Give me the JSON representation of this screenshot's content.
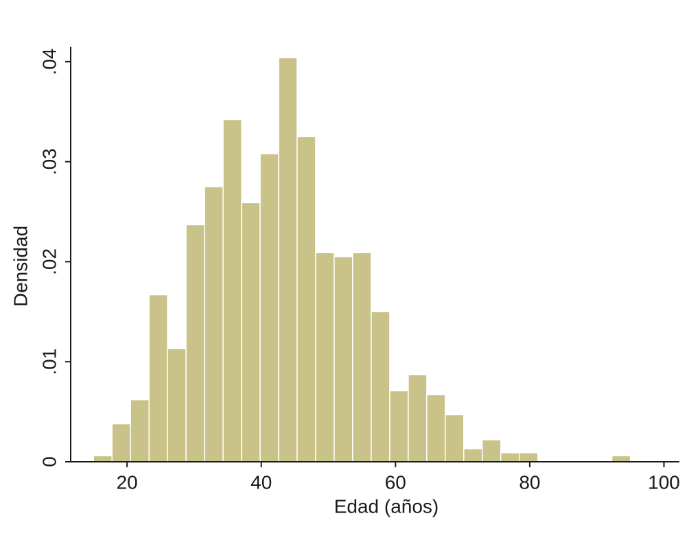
{
  "chart_data": {
    "type": "histogram",
    "x_label": "Edad (años)",
    "y_label": "Densidad",
    "bins": [
      15,
      17.76,
      20.52,
      23.28,
      26.03,
      28.79,
      31.55,
      34.31,
      37.07,
      39.83,
      42.59,
      45.34,
      48.1,
      50.86,
      53.62,
      56.38,
      59.14,
      61.9,
      64.66,
      67.41,
      70.17,
      72.93,
      75.69,
      78.45,
      81.21,
      83.97,
      86.72,
      89.48,
      92.24,
      95
    ],
    "values": [
      0.0006,
      0.0038,
      0.0062,
      0.0167,
      0.0113,
      0.0237,
      0.0275,
      0.0342,
      0.0259,
      0.0308,
      0.0404,
      0.0325,
      0.0209,
      0.0205,
      0.0209,
      0.015,
      0.0071,
      0.0087,
      0.0067,
      0.0047,
      0.0013,
      0.0022,
      0.0009,
      0.0009,
      0,
      0,
      0,
      0,
      0.0006
    ],
    "color": "#c9c289",
    "xlim": [
      11.6,
      102.3
    ],
    "xticks": [
      20,
      40,
      60,
      80,
      100
    ],
    "ylim": [
      0,
      0.0415
    ],
    "yticks": [
      0,
      {
        "value": 0.01,
        "label": ".01"
      },
      {
        "value": 0.02,
        "label": ".02"
      },
      {
        "value": 0.03,
        "label": ".03"
      },
      {
        "value": 0.04,
        "label": ".04"
      }
    ],
    "grid": false
  }
}
